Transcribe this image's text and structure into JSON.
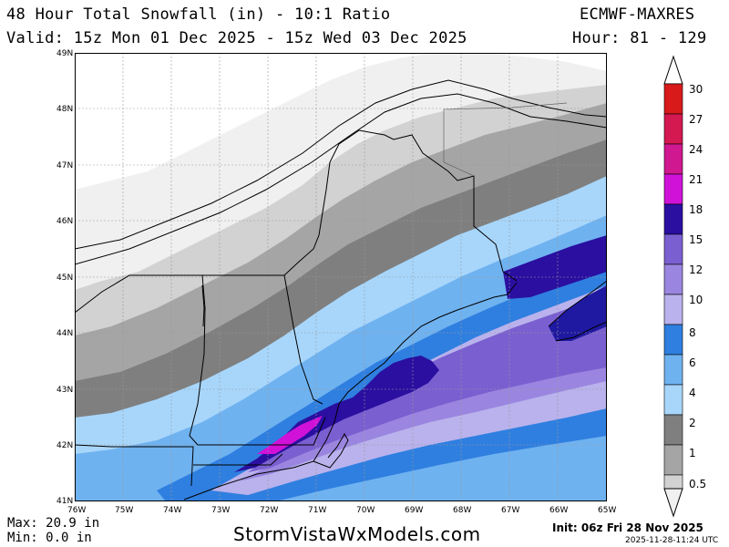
{
  "header": {
    "title": "48 Hour Total Snowfall (in) - 10:1 Ratio",
    "model": "ECMWF-MAXRES",
    "valid": "Valid: 15z Mon 01 Dec 2025 - 15z Wed 03 Dec 2025",
    "hours": "Hour: 81 - 129"
  },
  "map": {
    "lat_labels": [
      "49N",
      "48N",
      "47N",
      "46N",
      "45N",
      "44N",
      "43N",
      "42N",
      "41N"
    ],
    "lon_labels": [
      "76W",
      "75W",
      "74W",
      "73W",
      "72W",
      "71W",
      "70W",
      "69W",
      "68W",
      "67W",
      "66W",
      "65W"
    ],
    "lat_range": [
      41,
      49
    ],
    "lon_range": [
      -76,
      -65
    ],
    "grid": true
  },
  "legend": {
    "levels": [
      "0.5",
      "1",
      "2",
      "4",
      "6",
      "8",
      "10",
      "12",
      "15",
      "18",
      "21",
      "24",
      "27",
      "30"
    ],
    "colors": [
      "#f0f0f0",
      "#d2d2d2",
      "#a5a5a5",
      "#7f7f7f",
      "#a8d6fb",
      "#6fb2f0",
      "#2f7fe0",
      "#b9b2ec",
      "#9a86e0",
      "#7a5fd0",
      "#2a0fa0",
      "#d012d8",
      "#d01890",
      "#e01050"
    ]
  },
  "stats": {
    "max": "Max: 20.9 in",
    "min": "Min: 0.0 in"
  },
  "footer": {
    "brand": "StormVistaWxModels.com",
    "init": "Init: 06z Fri 28 Nov 2025",
    "timestamp": "2025-11-28-11:24 UTC"
  }
}
